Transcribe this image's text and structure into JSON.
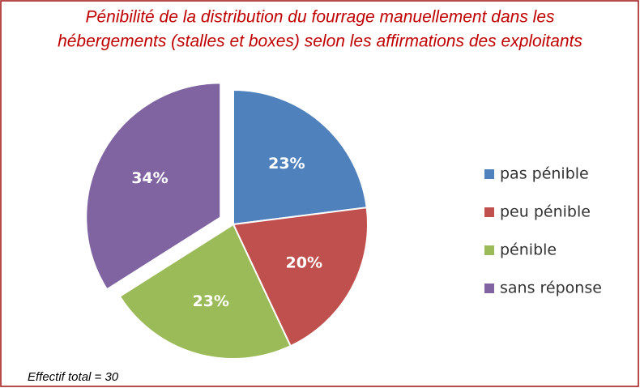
{
  "chart_data": {
    "type": "pie",
    "title": [
      "Pénibilité de la distribution du fourrage manuellement dans les",
      "hébergements (stalles et boxes) selon les affirmations des exploitants"
    ],
    "categories": [
      "pas pénible",
      "peu pénible",
      "pénible",
      "sans réponse"
    ],
    "values": [
      23,
      20,
      23,
      34
    ],
    "value_labels": [
      "23%",
      "20%",
      "23%",
      "34%"
    ],
    "colors": [
      "#4f81bd",
      "#c0504d",
      "#9bbb59",
      "#8064a2"
    ],
    "exploded": [
      false,
      false,
      false,
      true
    ],
    "legend": "right",
    "footnote": "Effectif total = 30"
  }
}
